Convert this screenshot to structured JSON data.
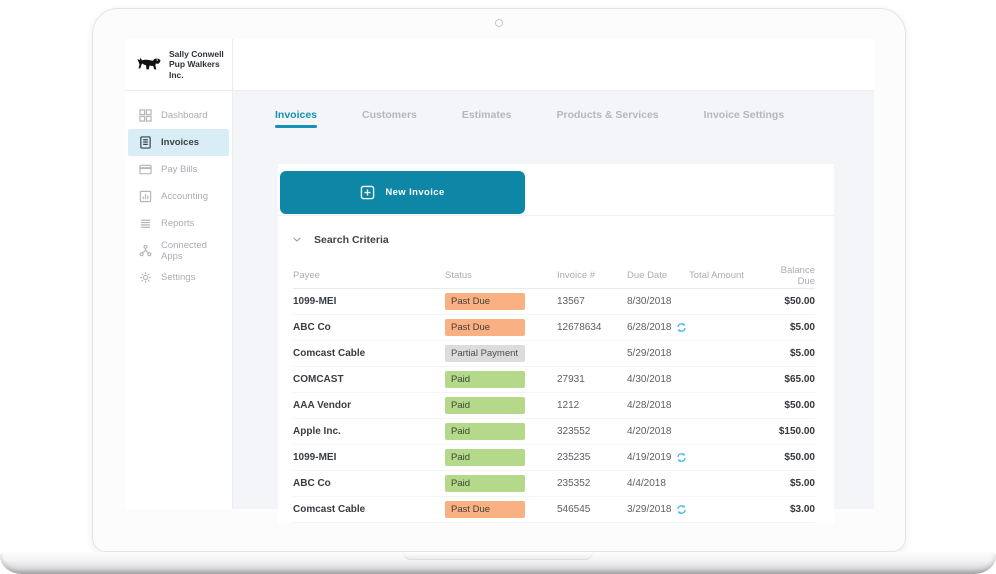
{
  "brand": {
    "line1": "Sally Conwell",
    "line2": "Pup Walkers Inc.",
    "logo_icon": "dog-logo-icon"
  },
  "sidebar": {
    "items": [
      {
        "label": "Dashboard",
        "icon": "dashboard-grid-icon",
        "active": false
      },
      {
        "label": "Invoices",
        "icon": "invoice-doc-icon",
        "active": true
      },
      {
        "label": "Pay Bills",
        "icon": "credit-card-icon",
        "active": false
      },
      {
        "label": "Accounting",
        "icon": "bar-chart-box-icon",
        "active": false
      },
      {
        "label": "Reports",
        "icon": "report-lines-icon",
        "active": false
      },
      {
        "label": "Connected Apps",
        "icon": "hub-nodes-icon",
        "active": false
      },
      {
        "label": "Settings",
        "icon": "gear-icon",
        "active": false
      }
    ]
  },
  "tabs": [
    {
      "label": "Invoices",
      "active": true
    },
    {
      "label": "Customers",
      "active": false
    },
    {
      "label": "Estimates",
      "active": false
    },
    {
      "label": "Products & Services",
      "active": false
    },
    {
      "label": "Invoice Settings",
      "active": false
    }
  ],
  "toolbar": {
    "new_invoice_label": "New Invoice",
    "icon": "plus-square-icon"
  },
  "search": {
    "label": "Search Criteria",
    "collapse_icon": "chevron-down-icon"
  },
  "table": {
    "columns": [
      "Payee",
      "Status",
      "Invoice #",
      "Due Date",
      "Total Amount",
      "Balance Due"
    ],
    "recurring_icon": "sync-recurring-icon",
    "rows": [
      {
        "payee": "1099-MEI",
        "status": "Past Due",
        "status_type": "past-due",
        "invoice": "13567",
        "due_date": "8/30/2018",
        "recurring": false,
        "total": "",
        "balance": "$50.00"
      },
      {
        "payee": "ABC Co",
        "status": "Past Due",
        "status_type": "past-due",
        "invoice": "12678634",
        "due_date": "6/28/2018",
        "recurring": true,
        "total": "",
        "balance": "$5.00"
      },
      {
        "payee": "Comcast Cable",
        "status": "Partial Payment",
        "status_type": "partial",
        "invoice": "",
        "due_date": "5/29/2018",
        "recurring": false,
        "total": "",
        "balance": "$5.00"
      },
      {
        "payee": "COMCAST",
        "status": "Paid",
        "status_type": "paid",
        "invoice": "27931",
        "due_date": "4/30/2018",
        "recurring": false,
        "total": "",
        "balance": "$65.00"
      },
      {
        "payee": "AAA Vendor",
        "status": "Paid",
        "status_type": "paid",
        "invoice": "1212",
        "due_date": "4/28/2018",
        "recurring": false,
        "total": "",
        "balance": "$50.00"
      },
      {
        "payee": "Apple Inc.",
        "status": "Paid",
        "status_type": "paid",
        "invoice": "323552",
        "due_date": "4/20/2018",
        "recurring": false,
        "total": "",
        "balance": "$150.00"
      },
      {
        "payee": "1099-MEI",
        "status": "Paid",
        "status_type": "paid",
        "invoice": "235235",
        "due_date": "4/19/2019",
        "recurring": true,
        "total": "",
        "balance": "$50.00"
      },
      {
        "payee": "ABC Co",
        "status": "Paid",
        "status_type": "paid",
        "invoice": "235352",
        "due_date": "4/4/2018",
        "recurring": false,
        "total": "",
        "balance": "$5.00"
      },
      {
        "payee": "Comcast Cable",
        "status": "Past Due",
        "status_type": "past-due",
        "invoice": "546545",
        "due_date": "3/29/2018",
        "recurring": true,
        "total": "",
        "balance": "$3.00"
      }
    ]
  },
  "colors": {
    "accent": "#0e87a7",
    "tab_active": "#1492b4",
    "active_item_bg": "#d8edf6",
    "badge_past_due": "#f9b184",
    "badge_partial": "#dcdcdb",
    "badge_paid": "#b5d98b",
    "sync_icon": "#47b7e9"
  }
}
